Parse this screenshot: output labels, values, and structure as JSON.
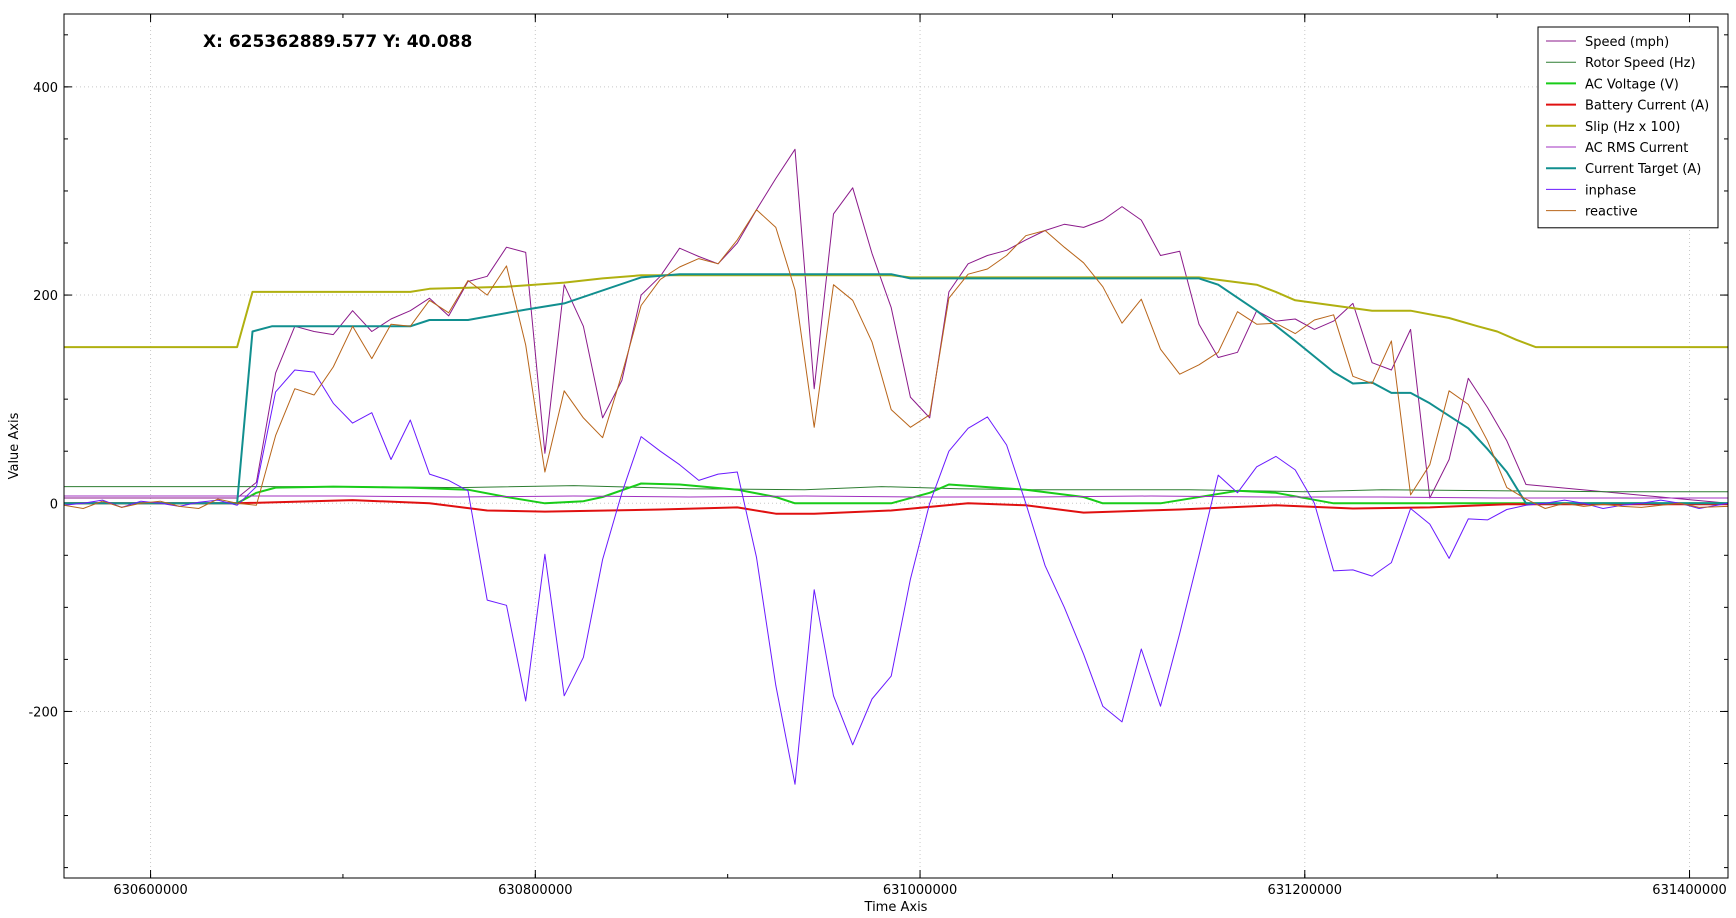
{
  "readout": {
    "text": "X: 625362889.577 Y: 40.088"
  },
  "chart_data": {
    "type": "line",
    "title": "",
    "xlabel": "Time Axis",
    "ylabel": "Value Axis",
    "xlim": [
      630555000,
      631420000
    ],
    "ylim": [
      -360,
      470
    ],
    "xticks": [
      630600000,
      630800000,
      631000000,
      631200000,
      631400000
    ],
    "xtick_labels": [
      "630600000",
      "630800000",
      "631000000",
      "631200000",
      "631400000"
    ],
    "yticks": [
      -200,
      0,
      200,
      400
    ],
    "ytick_labels": [
      "-200",
      "0",
      "200",
      "400"
    ],
    "grid": true,
    "legend_position": "top-right",
    "series": [
      {
        "name": "Speed (mph)",
        "color": "#8b1a8b",
        "width": 1,
        "x": [
          630555000,
          630645000,
          630655000,
          630665000,
          630675000,
          630685000,
          630695000,
          630705000,
          630715000,
          630725000,
          630735000,
          630745000,
          630755000,
          630765000,
          630775000,
          630785000,
          630795000,
          630805000,
          630815000,
          630825000,
          630835000,
          630845000,
          630855000,
          630865000,
          630875000,
          630885000,
          630895000,
          630905000,
          630915000,
          630925000,
          630935000,
          630945000,
          630955000,
          630965000,
          630975000,
          630985000,
          630995000,
          631005000,
          631015000,
          631025000,
          631035000,
          631045000,
          631055000,
          631065000,
          631075000,
          631085000,
          631095000,
          631105000,
          631115000,
          631125000,
          631135000,
          631145000,
          631155000,
          631165000,
          631175000,
          631185000,
          631195000,
          631205000,
          631215000,
          631225000,
          631235000,
          631245000,
          631255000,
          631265000,
          631275000,
          631285000,
          631295000,
          631305000,
          631315000,
          631420000
        ],
        "y": [
          5,
          5,
          20,
          125,
          170,
          165,
          162,
          185,
          165,
          177,
          185,
          197,
          180,
          213,
          218,
          246,
          241,
          48,
          210,
          170,
          82,
          118,
          200,
          218,
          245,
          237,
          230,
          250,
          282,
          312,
          340,
          110,
          278,
          303,
          240,
          188,
          102,
          82,
          203,
          230,
          238,
          243,
          253,
          262,
          268,
          265,
          272,
          285,
          272,
          238,
          242,
          172,
          140,
          145,
          185,
          175,
          177,
          167,
          175,
          192,
          135,
          128,
          167,
          5,
          42,
          120,
          92,
          60,
          18,
          0
        ]
      },
      {
        "name": "Rotor Speed (Hz)",
        "color": "#2e7d32",
        "width": 1,
        "x": [
          630555000,
          630600000,
          630645000,
          630700000,
          630760000,
          630820000,
          630880000,
          630940000,
          630980000,
          631020000,
          631060000,
          631100000,
          631140000,
          631200000,
          631240000,
          631300000,
          631360000,
          631420000
        ],
        "y": [
          16,
          16,
          16,
          16,
          15,
          17,
          14,
          13,
          16,
          14,
          13,
          13,
          13,
          11,
          13,
          12,
          11,
          11
        ]
      },
      {
        "name": "AC Voltage (V)",
        "color": "#19cc19",
        "width": 2,
        "x": [
          630555000,
          630645000,
          630655000,
          630665000,
          630695000,
          630735000,
          630765000,
          630785000,
          630805000,
          630825000,
          630835000,
          630855000,
          630875000,
          630905000,
          630925000,
          630935000,
          630965000,
          630985000,
          631005000,
          631015000,
          631055000,
          631085000,
          631095000,
          631125000,
          631165000,
          631185000,
          631215000,
          631255000,
          631305000,
          631420000
        ],
        "y": [
          0,
          0,
          10,
          15,
          16,
          15,
          13,
          6,
          0,
          2,
          6,
          19,
          18,
          13,
          6,
          0,
          0,
          0,
          10,
          18,
          13,
          6,
          0,
          0,
          12,
          10,
          0,
          0,
          0,
          0
        ]
      },
      {
        "name": "Battery Current (A)",
        "color": "#e01010",
        "width": 2,
        "x": [
          630555000,
          630645000,
          630705000,
          630745000,
          630775000,
          630805000,
          630865000,
          630905000,
          630925000,
          630945000,
          630985000,
          631025000,
          631055000,
          631085000,
          631135000,
          631185000,
          631225000,
          631265000,
          631305000,
          631420000
        ],
        "y": [
          0,
          0,
          3,
          0,
          -7,
          -8,
          -6,
          -4,
          -10,
          -10,
          -7,
          0,
          -2,
          -9,
          -6,
          -2,
          -5,
          -4,
          -1,
          -1
        ]
      },
      {
        "name": "Slip (Hz x 100)",
        "color": "#b0b010",
        "width": 2,
        "x": [
          630555000,
          630645000,
          630653000,
          630665000,
          630735000,
          630745000,
          630785000,
          630815000,
          630835000,
          630855000,
          630985000,
          630995000,
          631145000,
          631175000,
          631185000,
          631195000,
          631235000,
          631255000,
          631275000,
          631290000,
          631300000,
          631310000,
          631320000,
          631420000
        ],
        "y": [
          150,
          150,
          203,
          203,
          203,
          206,
          208,
          212,
          216,
          219,
          219,
          217,
          217,
          210,
          203,
          195,
          185,
          185,
          178,
          170,
          165,
          157,
          150,
          150
        ]
      },
      {
        "name": "AC RMS Current",
        "color": "#a030c0",
        "width": 1,
        "x": [
          630555000,
          630640000,
          630700000,
          630760000,
          630820000,
          630880000,
          630940000,
          631000000,
          631060000,
          631120000,
          631180000,
          631240000,
          631300000,
          631360000,
          631420000
        ],
        "y": [
          7,
          7,
          7,
          6,
          7,
          6,
          7,
          6,
          6,
          7,
          6,
          6,
          5,
          5,
          5
        ]
      },
      {
        "name": "Current Target (A)",
        "color": "#118f8f",
        "width": 2,
        "x": [
          630555000,
          630645000,
          630653000,
          630663000,
          630735000,
          630745000,
          630765000,
          630795000,
          630815000,
          630855000,
          630875000,
          630985000,
          630995000,
          631145000,
          631155000,
          631175000,
          631195000,
          631215000,
          631225000,
          631235000,
          631245000,
          631255000,
          631265000,
          631285000,
          631295000,
          631305000,
          631315000,
          631420000
        ],
        "y": [
          0,
          0,
          165,
          170,
          170,
          176,
          176,
          186,
          192,
          217,
          220,
          220,
          216,
          216,
          210,
          185,
          156,
          126,
          115,
          116,
          106,
          106,
          96,
          72,
          52,
          30,
          0,
          0
        ]
      },
      {
        "name": "inphase",
        "color": "#6a1aff",
        "width": 1,
        "x": [
          630555000,
          630565000,
          630575000,
          630585000,
          630595000,
          630605000,
          630615000,
          630625000,
          630635000,
          630645000,
          630655000,
          630665000,
          630675000,
          630685000,
          630695000,
          630705000,
          630715000,
          630725000,
          630735000,
          630745000,
          630755000,
          630765000,
          630775000,
          630785000,
          630795000,
          630805000,
          630815000,
          630825000,
          630835000,
          630845000,
          630855000,
          630865000,
          630875000,
          630885000,
          630895000,
          630905000,
          630915000,
          630925000,
          630935000,
          630945000,
          630955000,
          630965000,
          630975000,
          630985000,
          630995000,
          631005000,
          631015000,
          631025000,
          631035000,
          631045000,
          631055000,
          631065000,
          631075000,
          631085000,
          631095000,
          631105000,
          631115000,
          631125000,
          631135000,
          631145000,
          631155000,
          631165000,
          631175000,
          631185000,
          631195000,
          631205000,
          631215000,
          631225000,
          631235000,
          631245000,
          631255000,
          631265000,
          631275000,
          631285000,
          631295000,
          631305000,
          631315000,
          631325000,
          631335000,
          631345000,
          631355000,
          631365000,
          631375000,
          631385000,
          631395000,
          631405000,
          631420000
        ],
        "y": [
          -2,
          0,
          3,
          -4,
          2,
          0,
          -3,
          1,
          3,
          -2,
          16,
          107,
          128,
          126,
          96,
          77,
          87,
          42,
          80,
          28,
          22,
          12,
          -93,
          -98,
          -190,
          -49,
          -185,
          -148,
          -54,
          10,
          64,
          50,
          37,
          22,
          28,
          30,
          -52,
          -175,
          -270,
          -83,
          -185,
          -232,
          -188,
          -166,
          -73,
          0,
          50,
          72,
          83,
          56,
          0,
          -60,
          -100,
          -145,
          -195,
          -210,
          -140,
          -195,
          -125,
          -50,
          27,
          10,
          35,
          45,
          32,
          0,
          -65,
          -64,
          -70,
          -57,
          -5,
          -20,
          -53,
          -15,
          -16,
          -6,
          -2,
          0,
          3,
          0,
          -5,
          -2,
          0,
          3,
          0,
          -5,
          0
        ]
      },
      {
        "name": "reactive",
        "color": "#b8651a",
        "width": 1,
        "x": [
          630555000,
          630565000,
          630575000,
          630585000,
          630595000,
          630605000,
          630615000,
          630625000,
          630635000,
          630645000,
          630655000,
          630665000,
          630675000,
          630685000,
          630695000,
          630705000,
          630715000,
          630725000,
          630735000,
          630745000,
          630755000,
          630765000,
          630775000,
          630785000,
          630795000,
          630805000,
          630815000,
          630825000,
          630835000,
          630845000,
          630855000,
          630865000,
          630875000,
          630885000,
          630895000,
          630905000,
          630915000,
          630925000,
          630935000,
          630945000,
          630955000,
          630965000,
          630975000,
          630985000,
          630995000,
          631005000,
          631015000,
          631025000,
          631035000,
          631045000,
          631055000,
          631065000,
          631075000,
          631085000,
          631095000,
          631105000,
          631115000,
          631125000,
          631135000,
          631145000,
          631155000,
          631165000,
          631175000,
          631185000,
          631195000,
          631205000,
          631215000,
          631225000,
          631235000,
          631245000,
          631255000,
          631265000,
          631275000,
          631285000,
          631295000,
          631305000,
          631315000,
          631325000,
          631335000,
          631345000,
          631355000,
          631365000,
          631375000,
          631385000,
          631395000,
          631405000,
          631420000
        ],
        "y": [
          -2,
          -5,
          2,
          -4,
          0,
          2,
          -3,
          -5,
          4,
          0,
          -2,
          65,
          110,
          104,
          131,
          170,
          139,
          172,
          170,
          195,
          183,
          214,
          200,
          228,
          152,
          30,
          108,
          82,
          63,
          124,
          190,
          215,
          227,
          235,
          230,
          253,
          282,
          265,
          205,
          73,
          210,
          195,
          155,
          90,
          73,
          85,
          197,
          220,
          225,
          238,
          257,
          262,
          246,
          231,
          208,
          173,
          196,
          148,
          124,
          133,
          145,
          184,
          172,
          173,
          163,
          176,
          181,
          122,
          115,
          156,
          8,
          37,
          108,
          95,
          60,
          15,
          4,
          -5,
          0,
          -3,
          -1,
          -3,
          -4,
          -2,
          0,
          -4,
          -3
        ]
      }
    ]
  }
}
